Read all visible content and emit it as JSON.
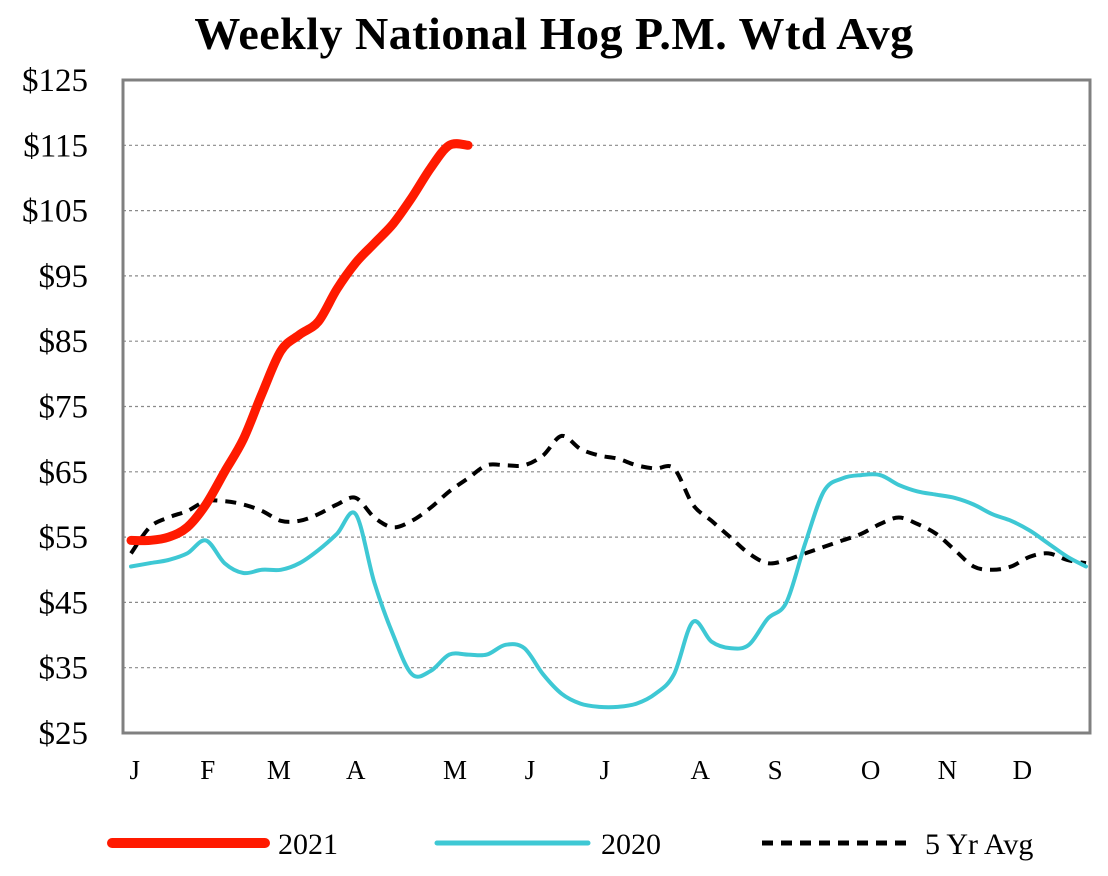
{
  "chart_data": {
    "type": "line",
    "title": "Weekly National Hog P.M. Wtd Avg",
    "xlabel": "",
    "ylabel": "",
    "ylim": [
      25,
      125
    ],
    "xlim": [
      0,
      51
    ],
    "y_ticks": [
      "$125",
      "$115",
      "$105",
      "$95",
      "$85",
      "$75",
      "$65",
      "$55",
      "$45",
      "$35",
      "$25"
    ],
    "y_tick_values": [
      125,
      115,
      105,
      95,
      85,
      75,
      65,
      55,
      45,
      35,
      25
    ],
    "month_labels": [
      "J",
      "F",
      "M",
      "A",
      "M",
      "J",
      "J",
      "A",
      "S",
      "O",
      "N",
      "D"
    ],
    "month_weeks": [
      0.2,
      4.1,
      7.9,
      12.0,
      17.3,
      21.3,
      25.3,
      30.4,
      34.4,
      39.5,
      43.6,
      47.6
    ],
    "grid": true,
    "legend_position": "bottom",
    "series": [
      {
        "name": "2021",
        "color": "#ff1a00",
        "style": "solid-thick",
        "x": [
          0,
          1,
          2,
          3,
          4,
          5,
          6,
          7,
          8,
          9,
          10,
          11,
          12,
          13,
          14,
          15,
          16,
          17,
          18
        ],
        "y": [
          54.5,
          54.5,
          55,
          56.5,
          60,
          65,
          70,
          77,
          83.5,
          86,
          88,
          93,
          97,
          100,
          103,
          107,
          111.5,
          115,
          115
        ]
      },
      {
        "name": "2020",
        "color": "#3ec8d4",
        "style": "solid",
        "x": [
          0,
          1,
          2,
          3,
          4,
          5,
          6,
          7,
          8,
          9,
          10,
          11,
          12,
          13,
          14,
          15,
          16,
          17,
          18,
          19,
          20,
          21,
          22,
          23,
          24,
          25,
          26,
          27,
          28,
          29,
          30,
          31,
          32,
          33,
          34,
          35,
          36,
          37,
          38,
          39,
          40,
          41,
          42,
          43,
          44,
          45,
          46,
          47,
          48,
          49,
          50,
          51
        ],
        "y": [
          50.5,
          51,
          51.5,
          52.5,
          54.5,
          51,
          49.5,
          50,
          50,
          51,
          53,
          55.5,
          58.5,
          48,
          40,
          34,
          34.5,
          37,
          37,
          37,
          38.5,
          38,
          34,
          31,
          29.5,
          29,
          29,
          29.5,
          31,
          34,
          42,
          39,
          38,
          38.5,
          42.5,
          45,
          54,
          62,
          64,
          64.5,
          64.5,
          63,
          62,
          61.5,
          61,
          60,
          58.5,
          57.5,
          56,
          54,
          52,
          50.5
        ]
      },
      {
        "name": "5 Yr Avg",
        "color": "#000000",
        "style": "dashed",
        "x": [
          0,
          1,
          2,
          3,
          4,
          5,
          6,
          7,
          8,
          9,
          10,
          11,
          12,
          13,
          14,
          15,
          16,
          17,
          18,
          19,
          20,
          21,
          22,
          23,
          24,
          25,
          26,
          27,
          28,
          29,
          30,
          31,
          32,
          33,
          34,
          35,
          36,
          37,
          38,
          39,
          40,
          41,
          42,
          43,
          44,
          45,
          46,
          47,
          48,
          49,
          50,
          51
        ],
        "y": [
          52.5,
          56.5,
          58,
          59,
          60.5,
          60.5,
          60,
          59,
          57.5,
          57.5,
          58.5,
          60,
          61,
          58,
          56.5,
          57.5,
          59.5,
          62,
          64,
          66,
          66,
          66,
          67.5,
          70.5,
          68.5,
          67.5,
          67,
          66,
          65.5,
          65.5,
          60,
          57.5,
          55,
          52.5,
          51,
          51.5,
          52.5,
          53.5,
          54.5,
          55.5,
          57,
          58,
          57,
          55.5,
          53,
          50.5,
          50,
          50.5,
          52,
          52.5,
          51.5,
          51
        ]
      }
    ]
  }
}
